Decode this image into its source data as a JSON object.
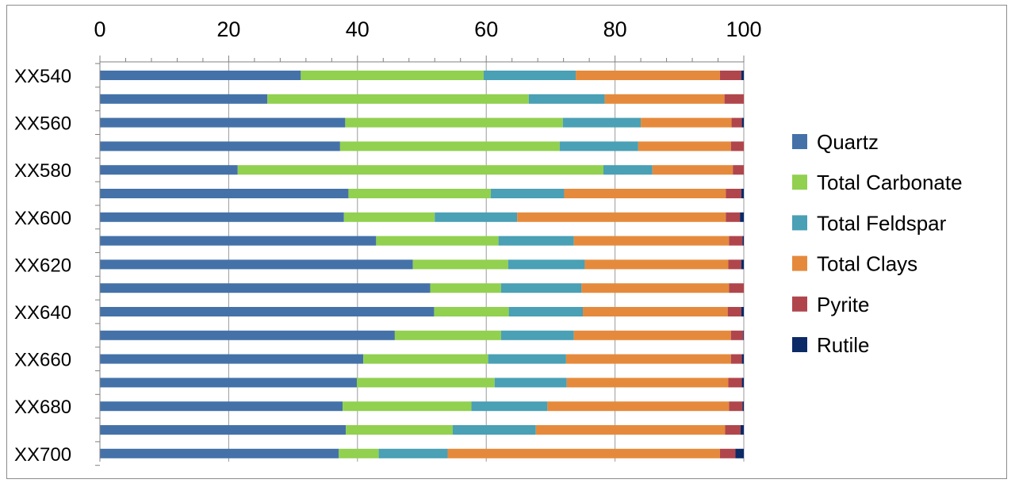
{
  "chart_data": {
    "type": "bar",
    "orientation": "horizontal",
    "stacked": true,
    "title": "",
    "xlabel": "",
    "ylabel": "",
    "xlim": [
      0,
      100
    ],
    "x_ticks": [
      "0",
      "20",
      "40",
      "60",
      "80",
      "100"
    ],
    "x_axis_position": "top",
    "grid": true,
    "legend_position": "right",
    "categories": [
      "XX540",
      "",
      "XX560",
      "",
      "XX580",
      "",
      "XX600",
      "",
      "XX620",
      "",
      "XX640",
      "",
      "XX660",
      "",
      "XX680",
      "",
      "XX700"
    ],
    "series": [
      {
        "name": "Quartz",
        "color": "#4472a8",
        "values": [
          31.2,
          26.0,
          38.1,
          37.3,
          21.4,
          38.6,
          37.9,
          42.9,
          48.6,
          51.3,
          51.9,
          45.8,
          40.9,
          39.9,
          37.7,
          38.2,
          37.1
        ]
      },
      {
        "name": "Total Carbonate",
        "color": "#92d050",
        "values": [
          28.4,
          40.6,
          33.8,
          34.1,
          56.8,
          22.1,
          14.1,
          19.0,
          14.8,
          11.0,
          11.6,
          16.5,
          19.4,
          21.4,
          20.0,
          16.6,
          6.2
        ]
      },
      {
        "name": "Total Feldspar",
        "color": "#4aa0b4",
        "values": [
          14.3,
          11.8,
          12.1,
          12.2,
          7.6,
          11.4,
          12.8,
          11.7,
          11.9,
          12.5,
          11.5,
          11.3,
          12.1,
          11.2,
          11.8,
          12.9,
          10.7
        ]
      },
      {
        "name": "Total Clays",
        "color": "#e58a3c",
        "values": [
          22.4,
          18.6,
          14.1,
          14.4,
          12.5,
          25.1,
          32.4,
          24.1,
          22.3,
          22.9,
          22.5,
          24.4,
          25.6,
          25.1,
          28.2,
          29.4,
          42.3
        ]
      },
      {
        "name": "Pyrite",
        "color": "#b0464c",
        "values": [
          3.3,
          3.0,
          1.6,
          2.0,
          1.7,
          2.4,
          2.2,
          2.1,
          2.0,
          2.3,
          2.1,
          1.9,
          1.7,
          2.1,
          2.1,
          2.4,
          2.4
        ]
      },
      {
        "name": "Rutile",
        "color": "#0c2a66",
        "values": [
          0.4,
          0.0,
          0.3,
          0.0,
          0.0,
          0.4,
          0.6,
          0.2,
          0.4,
          0.0,
          0.4,
          0.1,
          0.3,
          0.3,
          0.2,
          0.5,
          1.3
        ]
      }
    ]
  }
}
